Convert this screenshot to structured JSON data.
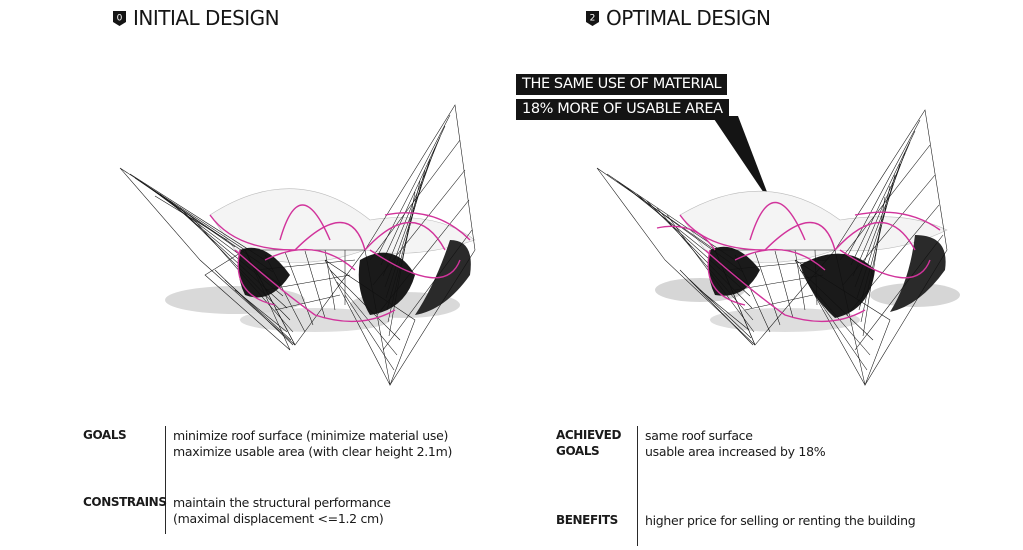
{
  "left_panel": {
    "badge_number": "0",
    "title": "INITIAL DESIGN",
    "goals_label": "GOALS",
    "goals_lines": [
      "minimize roof surface (minimize material use)",
      "maximize usable area (with clear height 2.1m)"
    ],
    "constrains_label": "CONSTRAINS",
    "constrains_lines": [
      "maintain the structural performance",
      "(maximal displacement  <=1.2 cm)"
    ]
  },
  "right_panel": {
    "badge_number": "2",
    "title": "OPTIMAL DESIGN",
    "callout_lines": [
      "THE SAME USE OF MATERIAL",
      "18% MORE OF USABLE AREA"
    ],
    "achieved_label_line1": "ACHIEVED",
    "achieved_label_line2": "GOALS",
    "achieved_lines": [
      "same roof surface",
      "usable area increased by 18%"
    ],
    "benefits_label": "BENEFITS",
    "benefits_lines": [
      "higher price for selling or renting the building"
    ]
  },
  "colors": {
    "accent_magenta": "#d1339b",
    "structure_black": "#111111",
    "shadow_grey": "#c8c8c8"
  }
}
